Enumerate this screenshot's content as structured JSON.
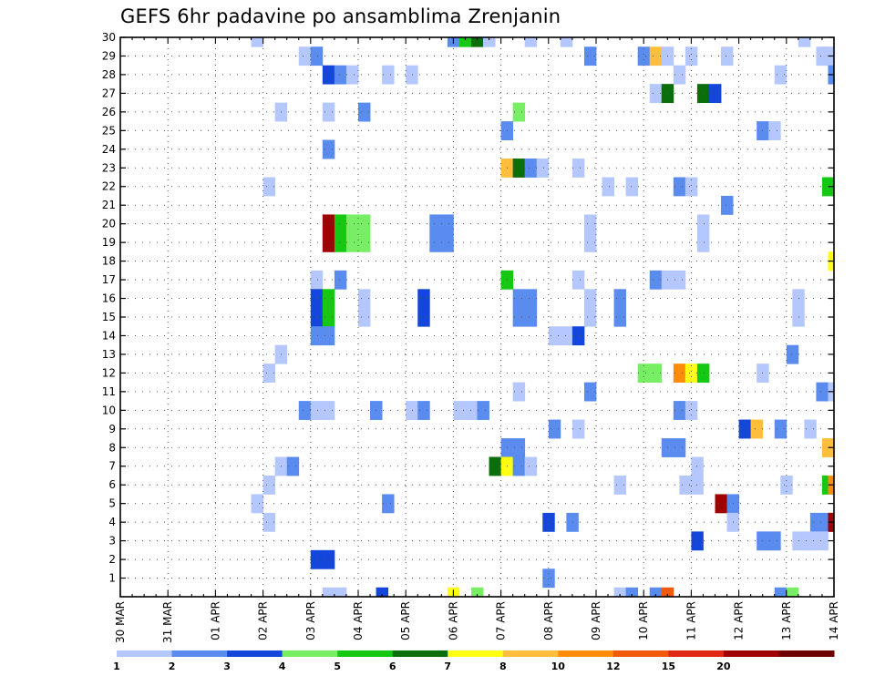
{
  "chart_data": {
    "type": "heatmap",
    "title": "GEFS 6hr padavine po ansamblima Zrenjanin",
    "xlabel": "",
    "ylabel": "",
    "x_ticks": [
      "30 MAR",
      "31 MAR",
      "01 APR",
      "02 APR",
      "03 APR",
      "04 APR",
      "05 APR",
      "06 APR",
      "07 APR",
      "08 APR",
      "09 APR",
      "10 APR",
      "11 APR",
      "12 APR",
      "13 APR",
      "14 APR"
    ],
    "y_ticks": [
      1,
      2,
      3,
      4,
      5,
      6,
      7,
      8,
      9,
      10,
      11,
      12,
      13,
      14,
      15,
      16,
      17,
      18,
      19,
      20,
      21,
      22,
      23,
      24,
      25,
      26,
      27,
      28,
      29,
      30
    ],
    "x_range_steps": [
      0,
      60
    ],
    "y_range_members": [
      0,
      30
    ],
    "grid": true,
    "color_levels": [
      {
        "label": "1",
        "color": "#b4c8ff"
      },
      {
        "label": "2",
        "color": "#5a8cf0"
      },
      {
        "label": "3",
        "color": "#1446dc"
      },
      {
        "label": "4",
        "color": "#78ee64"
      },
      {
        "label": "5",
        "color": "#14c814"
      },
      {
        "label": "6",
        "color": "#0a6e0a"
      },
      {
        "label": "7",
        "color": "#ffff14"
      },
      {
        "label": "8",
        "color": "#ffbe3c"
      },
      {
        "label": "10",
        "color": "#ff8c0a"
      },
      {
        "label": "12",
        "color": "#f05a0a"
      },
      {
        "label": "15",
        "color": "#e02814"
      },
      {
        "label": "20",
        "color": "#a00000"
      },
      {
        "label": "",
        "color": "#6e0000"
      }
    ],
    "cells": [
      {
        "m": 30,
        "t": 11.5,
        "l": 0
      },
      {
        "m": 30,
        "t": 28,
        "l": 1
      },
      {
        "m": 30,
        "t": 29,
        "l": 4
      },
      {
        "m": 30,
        "t": 30,
        "l": 5
      },
      {
        "m": 30,
        "t": 31,
        "l": 0
      },
      {
        "m": 30,
        "t": 34.5,
        "l": 0
      },
      {
        "m": 30,
        "t": 37.5,
        "l": 0
      },
      {
        "m": 30,
        "t": 57.5,
        "l": 0
      },
      {
        "m": 29,
        "t": 15.5,
        "l": 0
      },
      {
        "m": 29,
        "t": 16.5,
        "l": 1
      },
      {
        "m": 29,
        "t": 39.5,
        "l": 1
      },
      {
        "m": 29,
        "t": 44,
        "l": 1
      },
      {
        "m": 29,
        "t": 45,
        "l": 7
      },
      {
        "m": 29,
        "t": 46,
        "l": 0
      },
      {
        "m": 29,
        "t": 48,
        "l": 0
      },
      {
        "m": 29,
        "t": 51,
        "l": 0
      },
      {
        "m": 29,
        "t": 59,
        "l": 0
      },
      {
        "m": 29,
        "t": 59.5,
        "l": 0
      },
      {
        "m": 28,
        "t": 17.5,
        "l": 2
      },
      {
        "m": 28,
        "t": 18.5,
        "l": 1
      },
      {
        "m": 28,
        "t": 19.5,
        "l": 0
      },
      {
        "m": 28,
        "t": 22.5,
        "l": 0
      },
      {
        "m": 28,
        "t": 24.5,
        "l": 0
      },
      {
        "m": 28,
        "t": 47,
        "l": 0
      },
      {
        "m": 28,
        "t": 55.5,
        "l": 0
      },
      {
        "m": 28,
        "t": 60,
        "l": 1
      },
      {
        "m": 27,
        "t": 45,
        "l": 0
      },
      {
        "m": 27,
        "t": 46,
        "l": 5
      },
      {
        "m": 27,
        "t": 49,
        "l": 5
      },
      {
        "m": 27,
        "t": 50,
        "l": 2
      },
      {
        "m": 26,
        "t": 13.5,
        "l": 0
      },
      {
        "m": 26,
        "t": 17.5,
        "l": 0
      },
      {
        "m": 26,
        "t": 20.5,
        "l": 1
      },
      {
        "m": 26,
        "t": 33.5,
        "l": 3
      },
      {
        "m": 25,
        "t": 32.5,
        "l": 1
      },
      {
        "m": 25,
        "t": 54,
        "l": 1
      },
      {
        "m": 25,
        "t": 55,
        "l": 0
      },
      {
        "m": 24,
        "t": 17.5,
        "l": 1
      },
      {
        "m": 23,
        "t": 32.5,
        "l": 7
      },
      {
        "m": 23,
        "t": 33.5,
        "l": 5
      },
      {
        "m": 23,
        "t": 34.5,
        "l": 1
      },
      {
        "m": 23,
        "t": 35.5,
        "l": 0
      },
      {
        "m": 23,
        "t": 38.5,
        "l": 0
      },
      {
        "m": 22,
        "t": 12.5,
        "l": 0
      },
      {
        "m": 22,
        "t": 41,
        "l": 0
      },
      {
        "m": 22,
        "t": 43,
        "l": 0
      },
      {
        "m": 22,
        "t": 47,
        "l": 1
      },
      {
        "m": 22,
        "t": 48,
        "l": 0
      },
      {
        "m": 22,
        "t": 59.5,
        "l": 4
      },
      {
        "m": 21,
        "t": 51,
        "l": 1
      },
      {
        "m": 20,
        "t": 17.5,
        "l": 11
      },
      {
        "m": 20,
        "t": 18.5,
        "l": 4
      },
      {
        "m": 20,
        "t": 19.5,
        "l": 3
      },
      {
        "m": 20,
        "t": 20.5,
        "l": 3
      },
      {
        "m": 20,
        "t": 26.5,
        "l": 1
      },
      {
        "m": 20,
        "t": 27.5,
        "l": 1
      },
      {
        "m": 20,
        "t": 39.5,
        "l": 0
      },
      {
        "m": 20,
        "t": 49,
        "l": 0
      },
      {
        "m": 19,
        "t": 17.5,
        "l": 11
      },
      {
        "m": 19,
        "t": 18.5,
        "l": 4
      },
      {
        "m": 19,
        "t": 19.5,
        "l": 3
      },
      {
        "m": 19,
        "t": 20.5,
        "l": 3
      },
      {
        "m": 19,
        "t": 26.5,
        "l": 1
      },
      {
        "m": 19,
        "t": 27.5,
        "l": 1
      },
      {
        "m": 19,
        "t": 39.5,
        "l": 0
      },
      {
        "m": 19,
        "t": 49,
        "l": 0
      },
      {
        "m": 18,
        "t": 60,
        "l": 6
      },
      {
        "m": 17,
        "t": 16.5,
        "l": 0
      },
      {
        "m": 17,
        "t": 18.5,
        "l": 1
      },
      {
        "m": 17,
        "t": 32.5,
        "l": 4
      },
      {
        "m": 17,
        "t": 38.5,
        "l": 0
      },
      {
        "m": 17,
        "t": 45,
        "l": 1
      },
      {
        "m": 17,
        "t": 46,
        "l": 0
      },
      {
        "m": 17,
        "t": 47,
        "l": 0
      },
      {
        "m": 16,
        "t": 16.5,
        "l": 2
      },
      {
        "m": 16,
        "t": 17.5,
        "l": 4
      },
      {
        "m": 16,
        "t": 20.5,
        "l": 0
      },
      {
        "m": 16,
        "t": 25.5,
        "l": 2
      },
      {
        "m": 16,
        "t": 33.5,
        "l": 1
      },
      {
        "m": 16,
        "t": 34.5,
        "l": 1
      },
      {
        "m": 16,
        "t": 39.5,
        "l": 0
      },
      {
        "m": 16,
        "t": 42,
        "l": 1
      },
      {
        "m": 16,
        "t": 57,
        "l": 0
      },
      {
        "m": 15,
        "t": 16.5,
        "l": 2
      },
      {
        "m": 15,
        "t": 17.5,
        "l": 4
      },
      {
        "m": 15,
        "t": 20.5,
        "l": 0
      },
      {
        "m": 15,
        "t": 25.5,
        "l": 2
      },
      {
        "m": 15,
        "t": 33.5,
        "l": 1
      },
      {
        "m": 15,
        "t": 34.5,
        "l": 1
      },
      {
        "m": 15,
        "t": 39.5,
        "l": 0
      },
      {
        "m": 15,
        "t": 42,
        "l": 1
      },
      {
        "m": 15,
        "t": 57,
        "l": 0
      },
      {
        "m": 14,
        "t": 16.5,
        "l": 1
      },
      {
        "m": 14,
        "t": 17.5,
        "l": 1
      },
      {
        "m": 14,
        "t": 36.5,
        "l": 0
      },
      {
        "m": 14,
        "t": 37.5,
        "l": 0
      },
      {
        "m": 14,
        "t": 38.5,
        "l": 2
      },
      {
        "m": 13,
        "t": 13.5,
        "l": 0
      },
      {
        "m": 13,
        "t": 56.5,
        "l": 1
      },
      {
        "m": 12,
        "t": 12.5,
        "l": 0
      },
      {
        "m": 12,
        "t": 44,
        "l": 3
      },
      {
        "m": 12,
        "t": 45,
        "l": 3
      },
      {
        "m": 12,
        "t": 47,
        "l": 8
      },
      {
        "m": 12,
        "t": 48,
        "l": 6
      },
      {
        "m": 12,
        "t": 49,
        "l": 4
      },
      {
        "m": 12,
        "t": 54,
        "l": 0
      },
      {
        "m": 11,
        "t": 33.5,
        "l": 0
      },
      {
        "m": 11,
        "t": 39.5,
        "l": 1
      },
      {
        "m": 11,
        "t": 59,
        "l": 1
      },
      {
        "m": 11,
        "t": 60,
        "l": 0
      },
      {
        "m": 10,
        "t": 15.5,
        "l": 1
      },
      {
        "m": 10,
        "t": 16.5,
        "l": 0
      },
      {
        "m": 10,
        "t": 17.5,
        "l": 0
      },
      {
        "m": 10,
        "t": 21.5,
        "l": 1
      },
      {
        "m": 10,
        "t": 24.5,
        "l": 0
      },
      {
        "m": 10,
        "t": 25.5,
        "l": 1
      },
      {
        "m": 10,
        "t": 28.5,
        "l": 0
      },
      {
        "m": 10,
        "t": 29.5,
        "l": 0
      },
      {
        "m": 10,
        "t": 30.5,
        "l": 1
      },
      {
        "m": 10,
        "t": 47,
        "l": 1
      },
      {
        "m": 10,
        "t": 48,
        "l": 0
      },
      {
        "m": 9,
        "t": 36.5,
        "l": 1
      },
      {
        "m": 9,
        "t": 38.5,
        "l": 0
      },
      {
        "m": 9,
        "t": 52.5,
        "l": 2
      },
      {
        "m": 9,
        "t": 53.5,
        "l": 7
      },
      {
        "m": 9,
        "t": 55.5,
        "l": 1
      },
      {
        "m": 9,
        "t": 58,
        "l": 0
      },
      {
        "m": 8,
        "t": 32.5,
        "l": 1
      },
      {
        "m": 8,
        "t": 33.5,
        "l": 1
      },
      {
        "m": 8,
        "t": 46,
        "l": 1
      },
      {
        "m": 8,
        "t": 47,
        "l": 1
      },
      {
        "m": 8,
        "t": 59.5,
        "l": 7
      },
      {
        "m": 7,
        "t": 13.5,
        "l": 0
      },
      {
        "m": 7,
        "t": 14.5,
        "l": 1
      },
      {
        "m": 7,
        "t": 31.5,
        "l": 5
      },
      {
        "m": 7,
        "t": 32.5,
        "l": 6
      },
      {
        "m": 7,
        "t": 33.5,
        "l": 1
      },
      {
        "m": 7,
        "t": 34.5,
        "l": 0
      },
      {
        "m": 7,
        "t": 48.5,
        "l": 0
      },
      {
        "m": 6,
        "t": 12.5,
        "l": 0
      },
      {
        "m": 6,
        "t": 42,
        "l": 0
      },
      {
        "m": 6,
        "t": 47.5,
        "l": 0
      },
      {
        "m": 6,
        "t": 48.5,
        "l": 0
      },
      {
        "m": 6,
        "t": 56,
        "l": 0
      },
      {
        "m": 6,
        "t": 59.5,
        "l": 4
      },
      {
        "m": 6,
        "t": 60,
        "l": 8
      },
      {
        "m": 5,
        "t": 11.5,
        "l": 0
      },
      {
        "m": 5,
        "t": 22.5,
        "l": 1
      },
      {
        "m": 5,
        "t": 50.5,
        "l": 11
      },
      {
        "m": 5,
        "t": 51.5,
        "l": 1
      },
      {
        "m": 4,
        "t": 12.5,
        "l": 0
      },
      {
        "m": 4,
        "t": 36,
        "l": 2
      },
      {
        "m": 4,
        "t": 38,
        "l": 1
      },
      {
        "m": 4,
        "t": 51.5,
        "l": 0
      },
      {
        "m": 4,
        "t": 58.5,
        "l": 1
      },
      {
        "m": 4,
        "t": 59.5,
        "l": 1
      },
      {
        "m": 4,
        "t": 60,
        "l": 11
      },
      {
        "m": 3,
        "t": 48.5,
        "l": 2
      },
      {
        "m": 3,
        "t": 54,
        "l": 1
      },
      {
        "m": 3,
        "t": 55,
        "l": 1
      },
      {
        "m": 3,
        "t": 57,
        "l": 0
      },
      {
        "m": 3,
        "t": 58,
        "l": 0
      },
      {
        "m": 3,
        "t": 59,
        "l": 0
      },
      {
        "m": 2,
        "t": 16.5,
        "l": 2
      },
      {
        "m": 2,
        "t": 17.5,
        "l": 2
      },
      {
        "m": 1,
        "t": 36,
        "l": 1
      },
      {
        "m": 0,
        "t": 17.5,
        "l": 0
      },
      {
        "m": 0,
        "t": 18.5,
        "l": 0
      },
      {
        "m": 0,
        "t": 22,
        "l": 2
      },
      {
        "m": 0,
        "t": 28,
        "l": 6
      },
      {
        "m": 0,
        "t": 30,
        "l": 3
      },
      {
        "m": 0,
        "t": 42,
        "l": 0
      },
      {
        "m": 0,
        "t": 43,
        "l": 1
      },
      {
        "m": 0,
        "t": 45,
        "l": 1
      },
      {
        "m": 0,
        "t": 46,
        "l": 9
      },
      {
        "m": 0,
        "t": 55.5,
        "l": 1
      },
      {
        "m": 0,
        "t": 56.5,
        "l": 3
      }
    ]
  }
}
